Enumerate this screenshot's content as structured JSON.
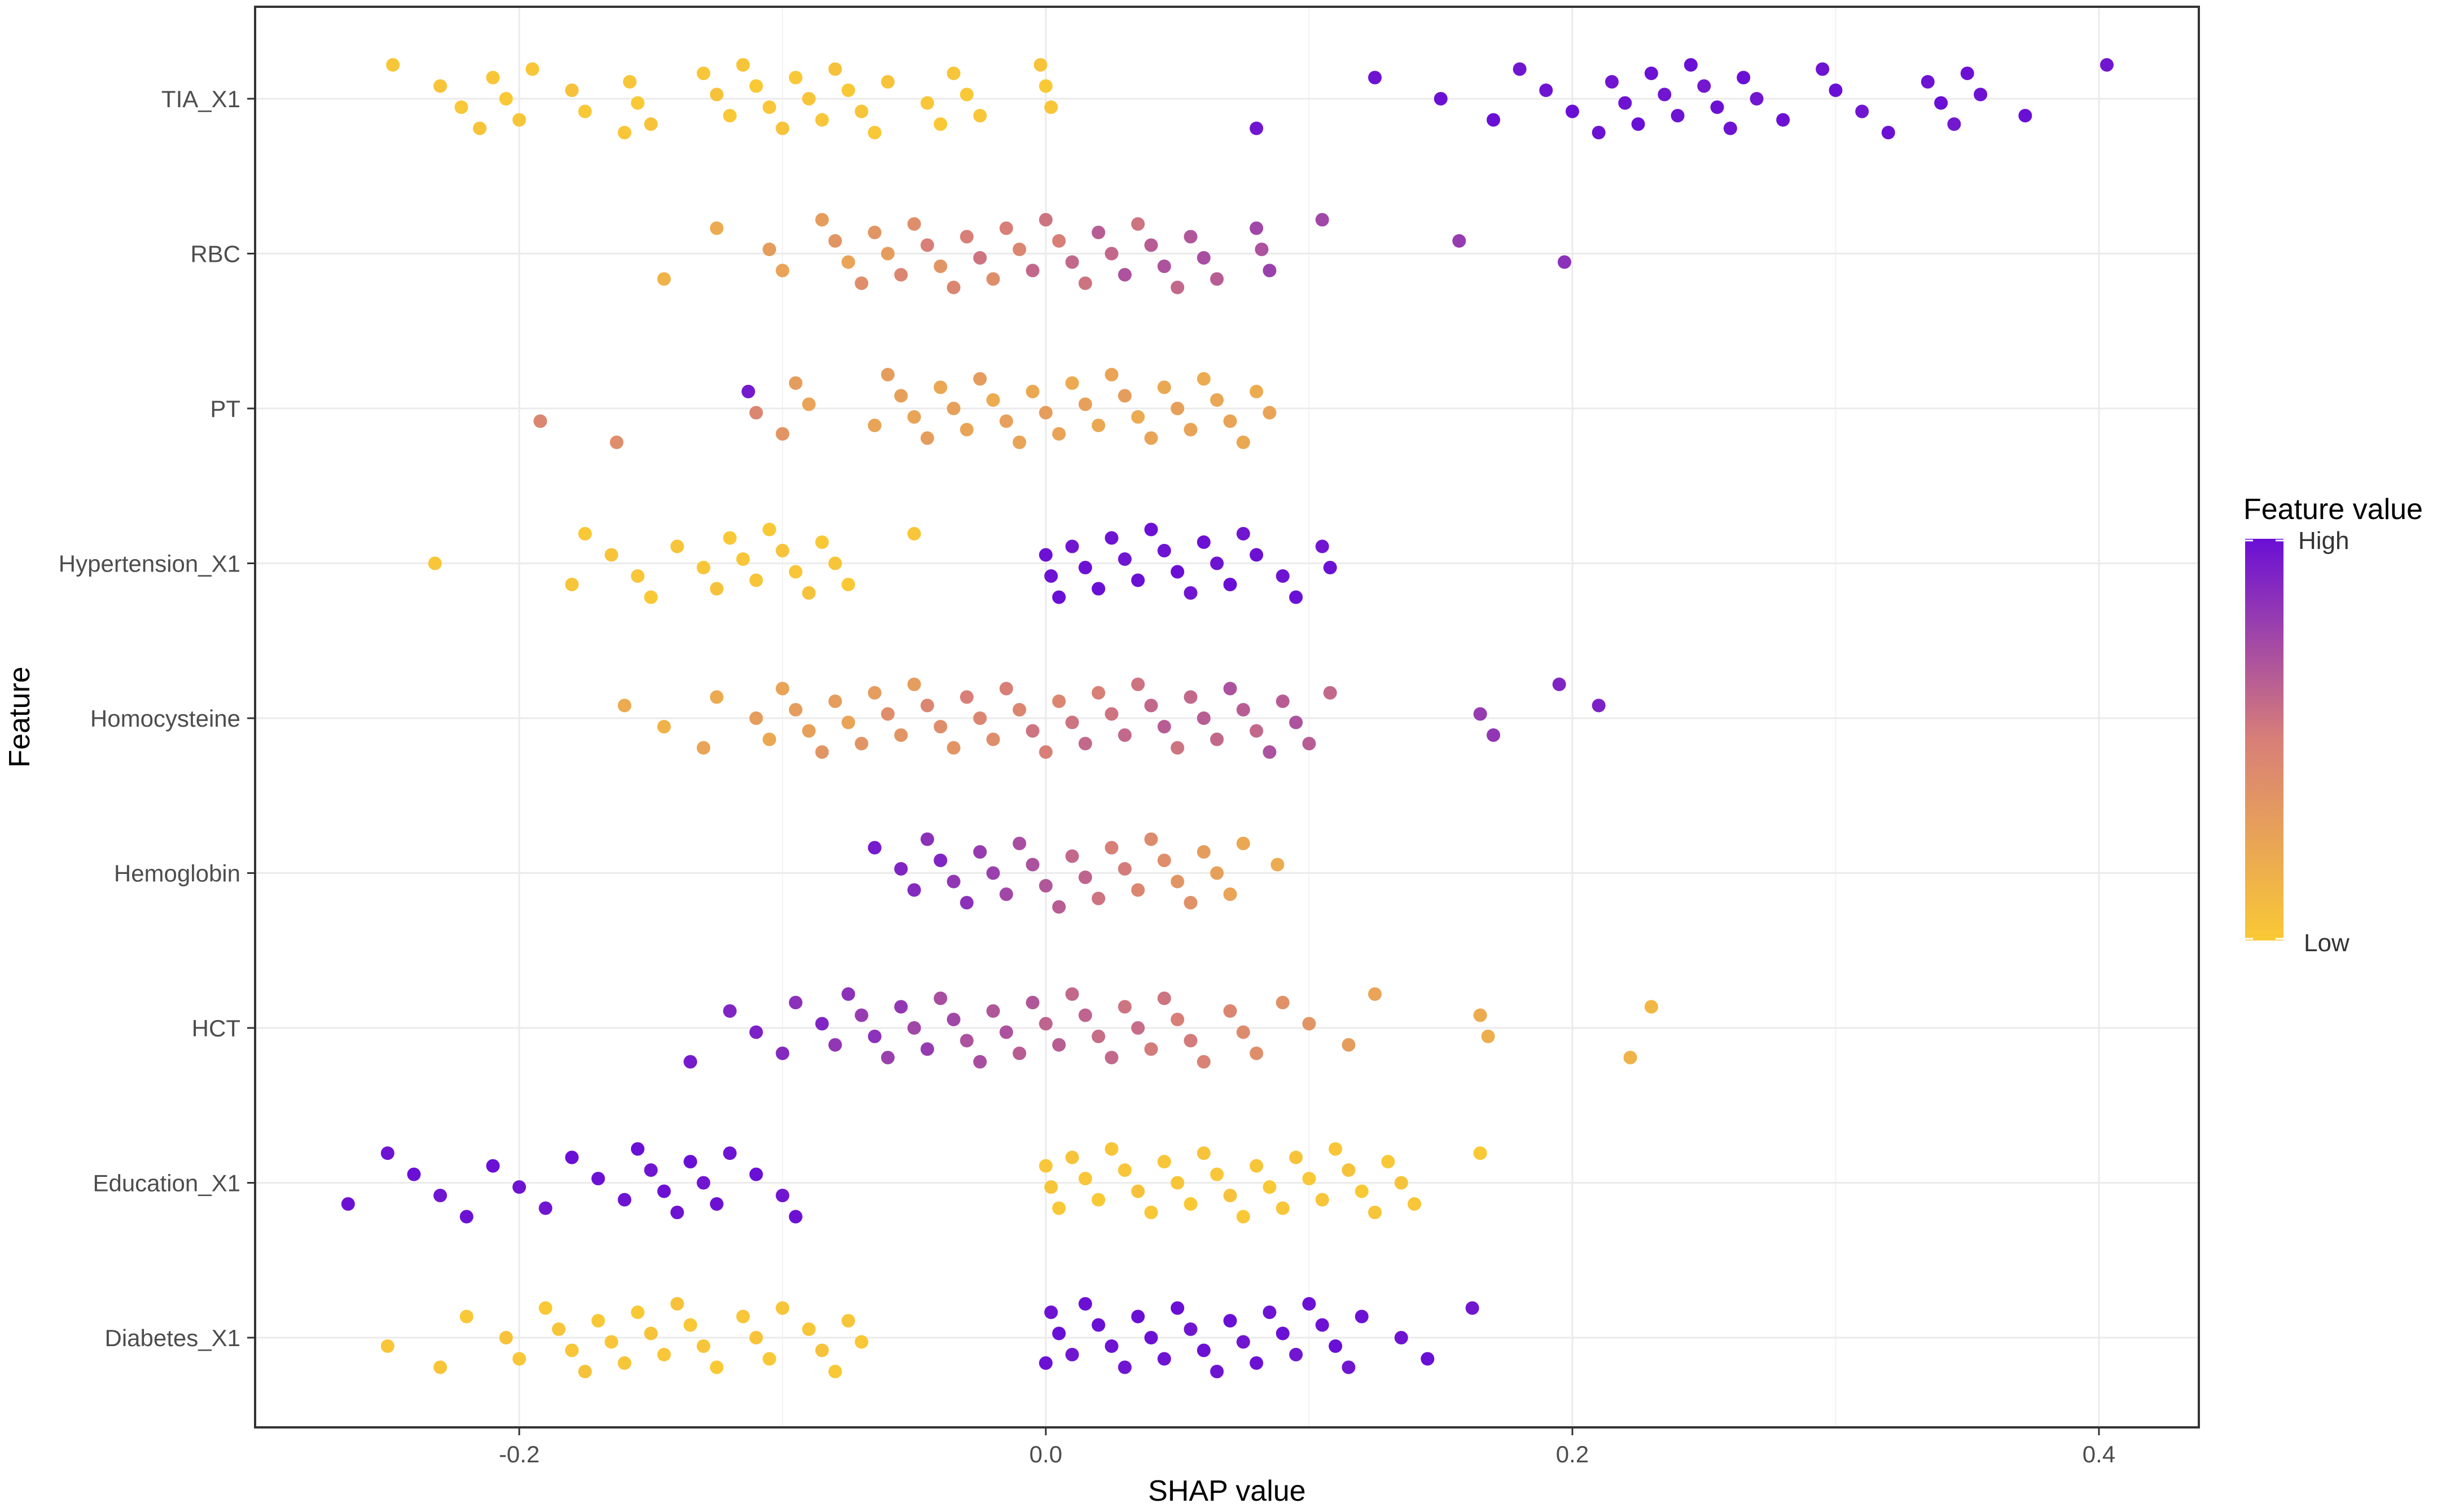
{
  "chart_data": {
    "type": "scatter",
    "title": "",
    "xlabel": "SHAP value",
    "ylabel": "Feature",
    "xlim": [
      -0.3,
      0.42
    ],
    "x_ticks": [
      {
        "value": -0.2,
        "label": "-0.2"
      },
      {
        "value": 0.0,
        "label": "0.0"
      },
      {
        "value": 0.2,
        "label": "0.2"
      },
      {
        "value": 0.4,
        "label": "0.4"
      }
    ],
    "grid": true,
    "legend": {
      "title": "Feature value",
      "high_label": "High",
      "low_label": "Low",
      "position": "right",
      "color_high": "#6a0fd6",
      "color_mid": "#d87f78",
      "color_low": "#f9c935"
    },
    "features": [
      "TIA_X1",
      "RBC",
      "PT",
      "Hypertension_X1",
      "Homocysteine",
      "Hemoglobin",
      "HCT",
      "Education_X1",
      "Diabetes_X1"
    ],
    "series": [
      {
        "feature": "TIA_X1",
        "x": [
          -0.248,
          -0.23,
          -0.222,
          -0.215,
          -0.21,
          -0.205,
          -0.2,
          -0.195,
          -0.18,
          -0.175,
          -0.16,
          -0.158,
          -0.155,
          -0.15,
          -0.13,
          -0.125,
          -0.12,
          -0.115,
          -0.11,
          -0.105,
          -0.1,
          -0.095,
          -0.09,
          -0.085,
          -0.08,
          -0.075,
          -0.07,
          -0.065,
          -0.06,
          -0.045,
          -0.04,
          -0.035,
          -0.03,
          -0.025,
          -0.002,
          0.0,
          0.002,
          0.08,
          0.125,
          0.15,
          0.17,
          0.18,
          0.19,
          0.2,
          0.21,
          0.215,
          0.22,
          0.225,
          0.23,
          0.235,
          0.24,
          0.245,
          0.25,
          0.255,
          0.26,
          0.265,
          0.27,
          0.28,
          0.295,
          0.3,
          0.31,
          0.32,
          0.335,
          0.34,
          0.345,
          0.35,
          0.355,
          0.372,
          0.403
        ],
        "c": [
          0.02,
          0.03,
          0.01,
          0.04,
          0.02,
          0.0,
          0.03,
          0.02,
          0.05,
          0.01,
          0.02,
          0.03,
          0.0,
          0.04,
          0.02,
          0.05,
          0.01,
          0.03,
          0.0,
          0.02,
          0.04,
          0.01,
          0.03,
          0.02,
          0.05,
          0.0,
          0.03,
          0.01,
          0.04,
          0.02,
          0.0,
          0.03,
          0.01,
          0.02,
          0.04,
          0.0,
          0.02,
          0.97,
          0.98,
          0.99,
          1.0,
          0.97,
          0.98,
          1.0,
          0.99,
          0.97,
          0.98,
          1.0,
          0.99,
          0.97,
          0.98,
          1.0,
          0.96,
          0.99,
          0.98,
          1.0,
          0.97,
          0.99,
          0.98,
          1.0,
          0.97,
          0.99,
          0.98,
          1.0,
          0.96,
          0.99,
          0.98,
          1.0,
          0.97
        ]
      },
      {
        "feature": "RBC",
        "x": [
          -0.145,
          -0.125,
          -0.105,
          -0.1,
          -0.085,
          -0.08,
          -0.075,
          -0.07,
          -0.065,
          -0.06,
          -0.055,
          -0.05,
          -0.045,
          -0.04,
          -0.035,
          -0.03,
          -0.025,
          -0.02,
          -0.015,
          -0.01,
          -0.005,
          0.0,
          0.005,
          0.01,
          0.015,
          0.02,
          0.025,
          0.03,
          0.035,
          0.04,
          0.045,
          0.05,
          0.055,
          0.06,
          0.065,
          0.08,
          0.082,
          0.085,
          0.105,
          0.157,
          0.197
        ],
        "c": [
          0.15,
          0.2,
          0.3,
          0.25,
          0.3,
          0.35,
          0.25,
          0.4,
          0.35,
          0.3,
          0.45,
          0.4,
          0.5,
          0.35,
          0.45,
          0.5,
          0.55,
          0.4,
          0.5,
          0.45,
          0.6,
          0.55,
          0.5,
          0.6,
          0.55,
          0.65,
          0.6,
          0.7,
          0.55,
          0.65,
          0.7,
          0.6,
          0.68,
          0.72,
          0.65,
          0.75,
          0.7,
          0.78,
          0.75,
          0.8,
          0.85
        ]
      },
      {
        "feature": "PT",
        "x": [
          -0.192,
          -0.163,
          -0.113,
          -0.11,
          -0.1,
          -0.095,
          -0.09,
          -0.065,
          -0.06,
          -0.055,
          -0.05,
          -0.045,
          -0.04,
          -0.035,
          -0.03,
          -0.025,
          -0.02,
          -0.015,
          -0.01,
          -0.005,
          0.0,
          0.005,
          0.01,
          0.015,
          0.02,
          0.025,
          0.03,
          0.035,
          0.04,
          0.045,
          0.05,
          0.055,
          0.06,
          0.065,
          0.07,
          0.075,
          0.08,
          0.085
        ],
        "c": [
          0.45,
          0.4,
          0.95,
          0.45,
          0.35,
          0.3,
          0.25,
          0.25,
          0.3,
          0.28,
          0.25,
          0.3,
          0.22,
          0.28,
          0.25,
          0.3,
          0.2,
          0.28,
          0.25,
          0.22,
          0.3,
          0.25,
          0.2,
          0.28,
          0.22,
          0.25,
          0.3,
          0.2,
          0.25,
          0.22,
          0.28,
          0.25,
          0.2,
          0.23,
          0.25,
          0.22,
          0.2,
          0.25
        ]
      },
      {
        "feature": "Hypertension_X1",
        "x": [
          -0.232,
          -0.18,
          -0.175,
          -0.165,
          -0.155,
          -0.15,
          -0.14,
          -0.13,
          -0.125,
          -0.12,
          -0.115,
          -0.11,
          -0.105,
          -0.1,
          -0.095,
          -0.09,
          -0.085,
          -0.08,
          -0.075,
          -0.05,
          0.0,
          0.002,
          0.005,
          0.01,
          0.015,
          0.02,
          0.025,
          0.03,
          0.035,
          0.04,
          0.045,
          0.05,
          0.055,
          0.06,
          0.065,
          0.07,
          0.075,
          0.08,
          0.09,
          0.095,
          0.105,
          0.108
        ],
        "c": [
          0.02,
          0.03,
          0.01,
          0.04,
          0.02,
          0.0,
          0.03,
          0.02,
          0.05,
          0.01,
          0.02,
          0.03,
          0.0,
          0.04,
          0.02,
          0.05,
          0.01,
          0.03,
          0.0,
          0.02,
          0.99,
          0.98,
          1.0,
          0.97,
          0.99,
          1.0,
          0.98,
          0.97,
          1.0,
          0.99,
          0.98,
          1.0,
          0.97,
          0.99,
          0.98,
          1.0,
          0.97,
          0.99,
          0.98,
          1.0,
          0.97,
          0.99
        ]
      },
      {
        "feature": "Homocysteine",
        "x": [
          -0.16,
          -0.145,
          -0.13,
          -0.125,
          -0.11,
          -0.105,
          -0.1,
          -0.095,
          -0.09,
          -0.085,
          -0.08,
          -0.075,
          -0.07,
          -0.065,
          -0.06,
          -0.055,
          -0.05,
          -0.045,
          -0.04,
          -0.035,
          -0.03,
          -0.025,
          -0.02,
          -0.015,
          -0.01,
          -0.005,
          0.0,
          0.005,
          0.01,
          0.015,
          0.02,
          0.025,
          0.03,
          0.035,
          0.04,
          0.045,
          0.05,
          0.055,
          0.06,
          0.065,
          0.07,
          0.075,
          0.08,
          0.085,
          0.09,
          0.095,
          0.1,
          0.108,
          0.165,
          0.17,
          0.195,
          0.21
        ],
        "c": [
          0.2,
          0.15,
          0.25,
          0.2,
          0.3,
          0.22,
          0.25,
          0.3,
          0.28,
          0.35,
          0.3,
          0.25,
          0.35,
          0.3,
          0.4,
          0.35,
          0.3,
          0.45,
          0.4,
          0.35,
          0.5,
          0.45,
          0.4,
          0.5,
          0.45,
          0.55,
          0.5,
          0.45,
          0.55,
          0.6,
          0.5,
          0.55,
          0.6,
          0.55,
          0.6,
          0.65,
          0.55,
          0.6,
          0.65,
          0.6,
          0.7,
          0.65,
          0.6,
          0.7,
          0.65,
          0.7,
          0.65,
          0.6,
          0.8,
          0.82,
          0.9,
          0.92
        ]
      },
      {
        "feature": "Hemoglobin",
        "x": [
          -0.065,
          -0.055,
          -0.05,
          -0.045,
          -0.04,
          -0.035,
          -0.03,
          -0.025,
          -0.02,
          -0.015,
          -0.01,
          -0.005,
          0.0,
          0.005,
          0.01,
          0.015,
          0.02,
          0.025,
          0.03,
          0.035,
          0.04,
          0.045,
          0.05,
          0.055,
          0.06,
          0.065,
          0.07,
          0.075,
          0.088
        ],
        "c": [
          0.95,
          0.9,
          0.88,
          0.85,
          0.9,
          0.82,
          0.85,
          0.8,
          0.78,
          0.75,
          0.72,
          0.7,
          0.68,
          0.65,
          0.6,
          0.62,
          0.55,
          0.5,
          0.52,
          0.45,
          0.42,
          0.4,
          0.35,
          0.38,
          0.3,
          0.28,
          0.25,
          0.22,
          0.2
        ]
      },
      {
        "feature": "HCT",
        "x": [
          -0.135,
          -0.12,
          -0.11,
          -0.1,
          -0.095,
          -0.085,
          -0.08,
          -0.075,
          -0.07,
          -0.065,
          -0.06,
          -0.055,
          -0.05,
          -0.045,
          -0.04,
          -0.035,
          -0.03,
          -0.025,
          -0.02,
          -0.015,
          -0.01,
          -0.005,
          0.0,
          0.005,
          0.01,
          0.015,
          0.02,
          0.025,
          0.03,
          0.035,
          0.04,
          0.045,
          0.05,
          0.055,
          0.06,
          0.07,
          0.075,
          0.08,
          0.09,
          0.1,
          0.115,
          0.125,
          0.165,
          0.168,
          0.222,
          0.23
        ],
        "c": [
          0.95,
          0.9,
          0.92,
          0.88,
          0.85,
          0.9,
          0.82,
          0.85,
          0.8,
          0.85,
          0.78,
          0.82,
          0.75,
          0.8,
          0.72,
          0.75,
          0.7,
          0.72,
          0.68,
          0.7,
          0.65,
          0.68,
          0.62,
          0.65,
          0.6,
          0.62,
          0.58,
          0.6,
          0.55,
          0.58,
          0.52,
          0.55,
          0.5,
          0.52,
          0.48,
          0.45,
          0.42,
          0.4,
          0.38,
          0.35,
          0.3,
          0.25,
          0.2,
          0.18,
          0.15,
          0.12
        ]
      },
      {
        "feature": "Education_X1",
        "x": [
          -0.265,
          -0.25,
          -0.24,
          -0.23,
          -0.22,
          -0.21,
          -0.2,
          -0.19,
          -0.18,
          -0.17,
          -0.16,
          -0.155,
          -0.15,
          -0.145,
          -0.14,
          -0.135,
          -0.13,
          -0.125,
          -0.12,
          -0.11,
          -0.1,
          -0.095,
          0.0,
          0.002,
          0.005,
          0.01,
          0.015,
          0.02,
          0.025,
          0.03,
          0.035,
          0.04,
          0.045,
          0.05,
          0.055,
          0.06,
          0.065,
          0.07,
          0.075,
          0.08,
          0.085,
          0.09,
          0.095,
          0.1,
          0.105,
          0.11,
          0.115,
          0.12,
          0.125,
          0.13,
          0.135,
          0.14,
          0.165
        ],
        "c": [
          0.99,
          0.98,
          1.0,
          0.97,
          0.99,
          1.0,
          0.98,
          0.97,
          1.0,
          0.99,
          0.98,
          1.0,
          0.97,
          0.99,
          0.98,
          1.0,
          0.97,
          0.99,
          0.98,
          1.0,
          0.97,
          0.99,
          0.02,
          0.03,
          0.01,
          0.04,
          0.02,
          0.0,
          0.03,
          0.02,
          0.05,
          0.01,
          0.02,
          0.03,
          0.0,
          0.04,
          0.02,
          0.05,
          0.01,
          0.03,
          0.0,
          0.02,
          0.04,
          0.01,
          0.03,
          0.02,
          0.05,
          0.0,
          0.03,
          0.01,
          0.04,
          0.02,
          0.0
        ]
      },
      {
        "feature": "Diabetes_X1",
        "x": [
          -0.25,
          -0.23,
          -0.22,
          -0.205,
          -0.2,
          -0.19,
          -0.185,
          -0.18,
          -0.175,
          -0.17,
          -0.165,
          -0.16,
          -0.155,
          -0.15,
          -0.145,
          -0.14,
          -0.135,
          -0.13,
          -0.125,
          -0.115,
          -0.11,
          -0.105,
          -0.1,
          -0.09,
          -0.085,
          -0.08,
          -0.075,
          -0.07,
          0.0,
          0.002,
          0.005,
          0.01,
          0.015,
          0.02,
          0.025,
          0.03,
          0.035,
          0.04,
          0.045,
          0.05,
          0.055,
          0.06,
          0.065,
          0.07,
          0.075,
          0.08,
          0.085,
          0.09,
          0.095,
          0.1,
          0.105,
          0.11,
          0.115,
          0.12,
          0.135,
          0.145,
          0.162
        ],
        "c": [
          0.02,
          0.03,
          0.01,
          0.04,
          0.02,
          0.0,
          0.03,
          0.02,
          0.05,
          0.01,
          0.02,
          0.03,
          0.0,
          0.04,
          0.02,
          0.05,
          0.01,
          0.03,
          0.0,
          0.02,
          0.04,
          0.01,
          0.03,
          0.02,
          0.05,
          0.0,
          0.03,
          0.01,
          0.99,
          0.98,
          1.0,
          0.97,
          0.99,
          1.0,
          0.98,
          0.97,
          1.0,
          0.99,
          0.98,
          1.0,
          0.97,
          0.99,
          0.98,
          1.0,
          0.97,
          0.99,
          0.98,
          1.0,
          0.97,
          0.99,
          0.98,
          1.0,
          0.97,
          0.99,
          0.98,
          1.0,
          0.97
        ]
      }
    ]
  }
}
